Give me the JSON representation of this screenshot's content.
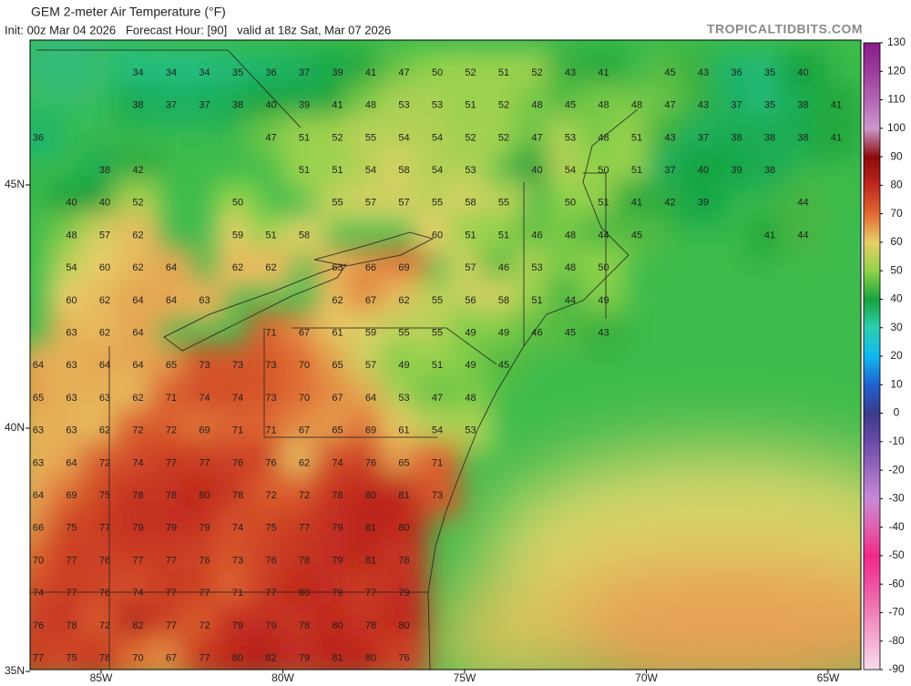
{
  "header": {
    "title": "GEM 2-meter Air Temperature (°F)",
    "subtitle": "Init: 00z Mar 04 2026   Forecast Hour: [90]   valid at 18z Sat, Mar 07 2026",
    "credit": "TROPICALTIDBITS.COM"
  },
  "latitude_labels": [
    "45N",
    "40N",
    "35N"
  ],
  "longitude_labels": [
    "85W",
    "80W",
    "75W",
    "70W",
    "65W"
  ],
  "colorbar": {
    "ticks": [
      130,
      120,
      110,
      100,
      90,
      80,
      70,
      60,
      50,
      40,
      30,
      20,
      10,
      0,
      -10,
      -20,
      -30,
      -40,
      -50,
      -60,
      -70,
      -80,
      -90
    ],
    "colors": [
      "#8a1a8a",
      "#9c3c9c",
      "#b466b4",
      "#cc99cc",
      "#8b0a0a",
      "#c0281e",
      "#e06a32",
      "#e8cf6a",
      "#8fd24a",
      "#16a33c",
      "#2ccfb0",
      "#10b8f0",
      "#2060d0",
      "#3a3a8a",
      "#6a4aa8",
      "#9a6ac0",
      "#c88ad8",
      "#e060b0",
      "#f02888",
      "#f050a0",
      "#f080b8",
      "#f4b0d4",
      "#f8dcec"
    ]
  },
  "temperatures": [
    [
      null,
      null,
      null,
      34,
      34,
      34,
      35,
      36,
      37,
      39,
      41,
      47,
      50,
      52,
      51,
      52,
      43,
      41,
      null,
      45,
      43,
      36,
      35,
      40
    ],
    [
      null,
      null,
      null,
      38,
      37,
      37,
      38,
      40,
      39,
      41,
      48,
      53,
      53,
      51,
      52,
      48,
      45,
      48,
      48,
      47,
      43,
      37,
      35,
      38,
      41
    ],
    [
      36,
      null,
      null,
      null,
      null,
      null,
      null,
      47,
      51,
      52,
      55,
      54,
      54,
      52,
      52,
      47,
      53,
      48,
      51,
      43,
      37,
      38,
      38,
      38,
      41
    ],
    [
      null,
      null,
      38,
      42,
      null,
      null,
      null,
      null,
      51,
      51,
      54,
      58,
      54,
      53,
      null,
      40,
      54,
      50,
      51,
      37,
      40,
      39,
      38
    ],
    [
      null,
      40,
      40,
      52,
      null,
      null,
      50,
      null,
      null,
      55,
      57,
      57,
      55,
      58,
      55,
      null,
      50,
      51,
      41,
      42,
      39,
      null,
      null,
      44
    ],
    [
      null,
      48,
      57,
      62,
      null,
      null,
      59,
      51,
      58,
      null,
      null,
      null,
      60,
      51,
      51,
      46,
      48,
      44,
      45,
      null,
      null,
      null,
      41,
      44
    ],
    [
      null,
      54,
      60,
      62,
      64,
      null,
      62,
      62,
      null,
      63,
      66,
      69,
      null,
      57,
      46,
      53,
      48,
      50
    ],
    [
      null,
      60,
      62,
      64,
      64,
      63,
      null,
      null,
      null,
      62,
      67,
      62,
      55,
      56,
      58,
      51,
      44,
      49
    ],
    [
      null,
      63,
      62,
      64,
      null,
      null,
      null,
      71,
      67,
      61,
      59,
      55,
      55,
      49,
      49,
      46,
      45,
      43
    ],
    [
      64,
      63,
      64,
      64,
      65,
      73,
      73,
      73,
      70,
      65,
      57,
      49,
      51,
      49,
      45
    ],
    [
      65,
      63,
      63,
      62,
      71,
      74,
      74,
      73,
      70,
      67,
      64,
      53,
      47,
      48
    ],
    [
      63,
      63,
      62,
      72,
      72,
      69,
      71,
      71,
      67,
      65,
      69,
      61,
      54,
      53
    ],
    [
      63,
      64,
      72,
      74,
      77,
      77,
      76,
      76,
      62,
      74,
      76,
      65,
      71
    ],
    [
      64,
      69,
      75,
      78,
      78,
      80,
      78,
      72,
      72,
      78,
      80,
      81,
      73
    ],
    [
      66,
      75,
      77,
      79,
      79,
      79,
      74,
      75,
      77,
      79,
      81,
      80
    ],
    [
      70,
      77,
      76,
      77,
      77,
      76,
      73,
      76,
      78,
      79,
      81,
      78
    ],
    [
      74,
      77,
      76,
      74,
      77,
      77,
      71,
      77,
      80,
      79,
      77,
      79
    ],
    [
      76,
      78,
      72,
      82,
      77,
      72,
      79,
      79,
      78,
      80,
      78,
      80
    ],
    [
      77,
      75,
      78,
      70,
      67,
      77,
      80,
      82,
      79,
      81,
      80,
      76
    ]
  ]
}
